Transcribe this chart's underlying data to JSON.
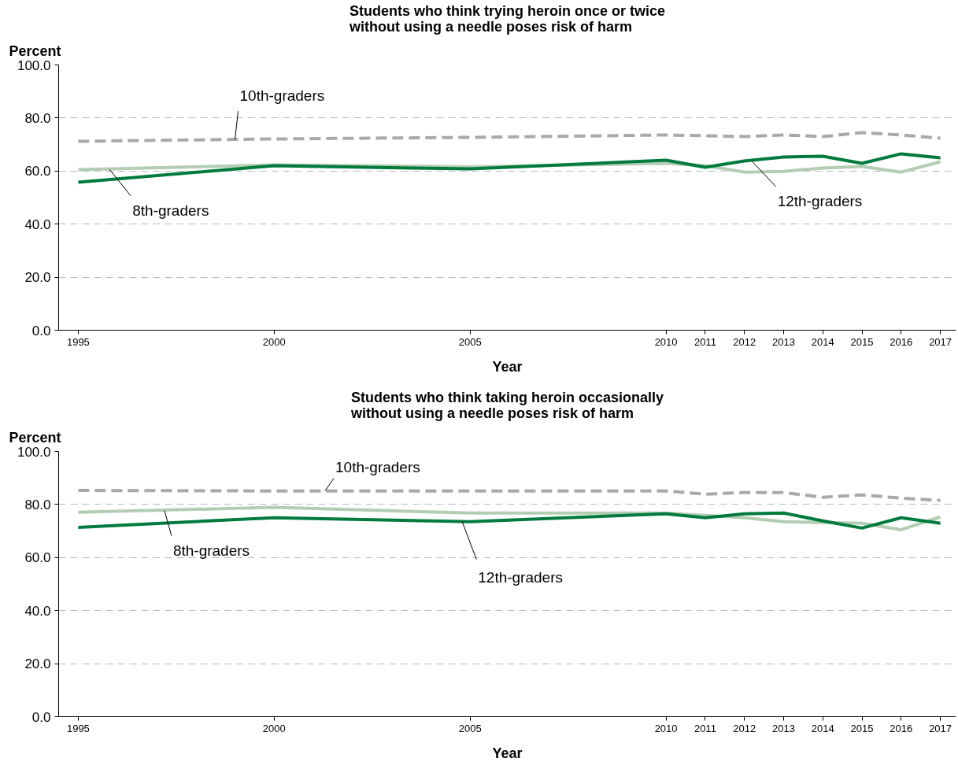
{
  "chart_data": [
    {
      "type": "line",
      "title": "Students who think trying heroin once or twice\nwithout using a needle poses risk of harm",
      "xlabel": "Year",
      "ylabel": "Percent",
      "x": [
        1995,
        2000,
        2005,
        2010,
        2011,
        2012,
        2013,
        2014,
        2015,
        2016,
        2017
      ],
      "series": [
        {
          "color": "#a7a9ac",
          "line_style": "dashed",
          "values": [
            71.2,
            72.1,
            72.7,
            73.6,
            73.3,
            73.0,
            73.6,
            73.0,
            74.5,
            73.6,
            72.4
          ]
        },
        {
          "color": "#b3cdb3",
          "line_style": "solid",
          "values": [
            60.5,
            62.3,
            61.6,
            62.9,
            62.0,
            59.6,
            59.9,
            61.1,
            61.7,
            59.6,
            63.5
          ]
        },
        {
          "color": "#007a3d",
          "line_style": "solid",
          "values": [
            55.8,
            62.0,
            60.8,
            64.1,
            61.4,
            63.8,
            65.3,
            65.6,
            62.9,
            66.5,
            65.0
          ]
        }
      ],
      "xlim": [
        1994.5,
        2017.4
      ],
      "xticks": [
        1995,
        2000,
        2005,
        2010,
        2011,
        2012,
        2013,
        2014,
        2015,
        2016,
        2017
      ],
      "ylim": [
        0,
        100
      ],
      "yticks": [
        {
          "value": 0,
          "label": "0.0"
        },
        {
          "value": 20,
          "label": "20.0"
        },
        {
          "value": 40,
          "label": "40.0"
        },
        {
          "value": 60,
          "label": "60.0"
        },
        {
          "value": 80,
          "label": "80.0"
        },
        {
          "value": 100,
          "label": "100.0"
        }
      ],
      "grid": "y",
      "marker": "none",
      "annotations": [
        {
          "text": "10th-graders",
          "x": 1999,
          "y": 71.9
        },
        {
          "text": "8th-graders",
          "x": 1995.8,
          "y": 60.6
        },
        {
          "text": "12th-graders",
          "x": 2012.2,
          "y": 63.6
        }
      ]
    },
    {
      "type": "line",
      "title": "Students who think taking heroin occasionally\nwithout using a needle poses risk of harm",
      "xlabel": "Year",
      "ylabel": "Percent",
      "x": [
        1995,
        2000,
        2005,
        2010,
        2011,
        2012,
        2013,
        2014,
        2015,
        2016,
        2017
      ],
      "series": [
        {
          "color": "#a7a9ac",
          "line_style": "dashed",
          "values": [
            85.3,
            85.1,
            85.1,
            85.1,
            83.9,
            84.5,
            84.5,
            82.7,
            83.6,
            82.4,
            81.5
          ]
        },
        {
          "color": "#b3cdb3",
          "line_style": "solid",
          "values": [
            77.1,
            78.9,
            76.8,
            76.8,
            75.9,
            75.0,
            73.5,
            73.2,
            72.9,
            70.5,
            75.3
          ]
        },
        {
          "color": "#007a3d",
          "line_style": "solid",
          "values": [
            71.4,
            75.0,
            73.5,
            76.5,
            75.0,
            76.5,
            76.8,
            73.8,
            71.1,
            75.0,
            72.9
          ]
        }
      ],
      "xlim": [
        1994.5,
        2017.4
      ],
      "xticks": [
        1995,
        2000,
        2005,
        2010,
        2011,
        2012,
        2013,
        2014,
        2015,
        2016,
        2017
      ],
      "ylim": [
        0,
        100
      ],
      "yticks": [
        {
          "value": 0,
          "label": "0.0"
        },
        {
          "value": 20,
          "label": "20.0"
        },
        {
          "value": 40,
          "label": "40.0"
        },
        {
          "value": 60,
          "label": "60.0"
        },
        {
          "value": 80,
          "label": "80.0"
        },
        {
          "value": 100,
          "label": "100.0"
        }
      ],
      "grid": "y",
      "marker": "none",
      "annotations": [
        {
          "text": "10th-graders",
          "x": 2001.3,
          "y": 85.1
        },
        {
          "text": "8th-graders",
          "x": 1997.2,
          "y": 77.7
        },
        {
          "text": "12th-graders",
          "x": 2004.8,
          "y": 73.5
        }
      ]
    }
  ]
}
